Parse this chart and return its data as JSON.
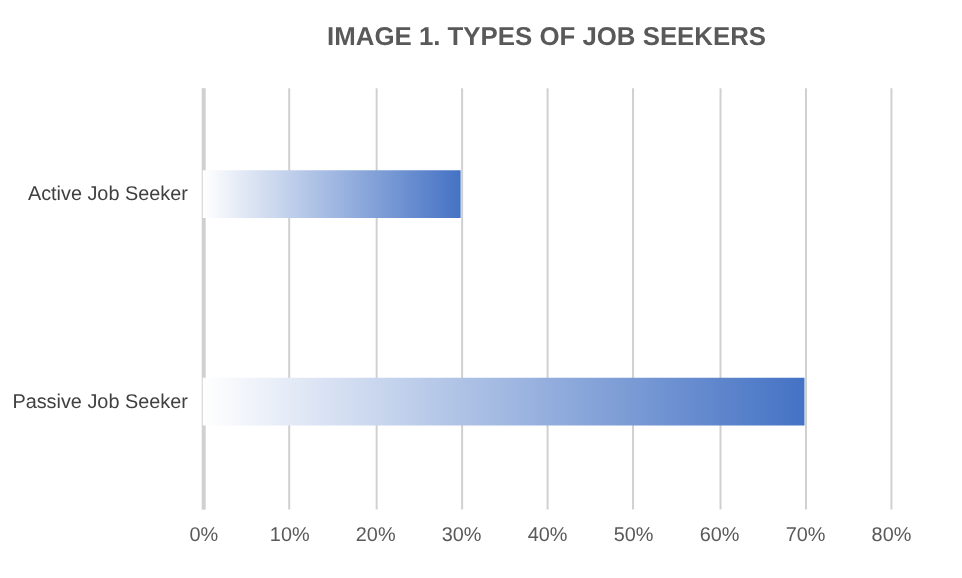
{
  "chart_data": {
    "type": "bar",
    "orientation": "horizontal",
    "title": "IMAGE 1. TYPES OF JOB SEEKERS",
    "categories": [
      "Active Job Seeker",
      "Passive Job Seeker"
    ],
    "values": [
      30,
      70
    ],
    "color": "#4472c4",
    "xlim": [
      0,
      80
    ],
    "xticks": [
      {
        "value": 0,
        "label": "0%"
      },
      {
        "value": 10,
        "label": "10%"
      },
      {
        "value": 20,
        "label": "20%"
      },
      {
        "value": 30,
        "label": "30%"
      },
      {
        "value": 40,
        "label": "40%"
      },
      {
        "value": 50,
        "label": "50%"
      },
      {
        "value": 60,
        "label": "60%"
      },
      {
        "value": 70,
        "label": "70%"
      },
      {
        "value": 80,
        "label": "80%"
      }
    ],
    "grid": "x"
  }
}
